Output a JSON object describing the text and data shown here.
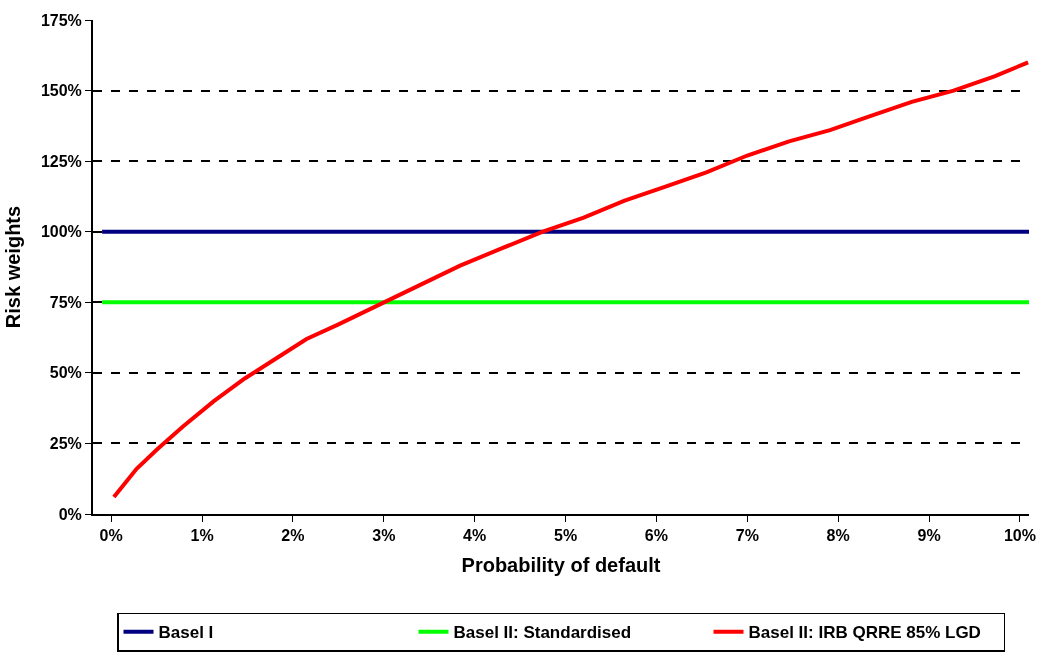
{
  "chart_data": {
    "type": "line",
    "xlabel": "Probability of default",
    "ylabel": "Risk weights",
    "xlim": [
      -0.2,
      10.1
    ],
    "xticks": [
      {
        "value": 0,
        "label": "0%"
      },
      {
        "value": 1,
        "label": "1%"
      },
      {
        "value": 2,
        "label": "2%"
      },
      {
        "value": 3,
        "label": "3%"
      },
      {
        "value": 4,
        "label": "4%"
      },
      {
        "value": 5,
        "label": "5%"
      },
      {
        "value": 6,
        "label": "6%"
      },
      {
        "value": 7,
        "label": "7%"
      },
      {
        "value": 8,
        "label": "8%"
      },
      {
        "value": 9,
        "label": "9%"
      },
      {
        "value": 10,
        "label": "10%"
      }
    ],
    "ylim": [
      0,
      175
    ],
    "yticks": [
      {
        "value": 0,
        "label": "0%"
      },
      {
        "value": 25,
        "label": "25%"
      },
      {
        "value": 50,
        "label": "50%"
      },
      {
        "value": 75,
        "label": "75%"
      },
      {
        "value": 100,
        "label": "100%"
      },
      {
        "value": 125,
        "label": "125%"
      },
      {
        "value": 150,
        "label": "150%"
      },
      {
        "value": 175,
        "label": "175%"
      }
    ],
    "grid": "y",
    "legend": "bottom",
    "marker": "none",
    "line_style": "solid",
    "series": [
      {
        "name": "Basel I",
        "color": "#000080",
        "x": [
          -0.1,
          10.1
        ],
        "values": [
          100,
          100
        ]
      },
      {
        "name": "Basel II: Standardised",
        "color": "#00ff00",
        "x": [
          -0.1,
          10.1
        ],
        "values": [
          75,
          75
        ]
      },
      {
        "name": "Basel II: IRB QRRE 85% LGD",
        "color": "#ff0000",
        "x": [
          0.03,
          0.28,
          0.51,
          0.79,
          1.13,
          1.47,
          1.81,
          2.15,
          2.49,
          2.94,
          3.39,
          3.84,
          4.29,
          4.75,
          5.2,
          5.65,
          6.1,
          6.55,
          7.0,
          7.46,
          7.91,
          8.36,
          8.81,
          9.27,
          9.72,
          10.09
        ],
        "values": [
          6,
          16,
          23,
          31,
          40,
          48,
          55,
          62,
          67,
          74,
          81,
          88,
          94,
          100,
          105,
          111,
          116,
          121,
          127,
          132,
          136,
          141,
          146,
          150,
          155,
          160
        ]
      }
    ]
  }
}
